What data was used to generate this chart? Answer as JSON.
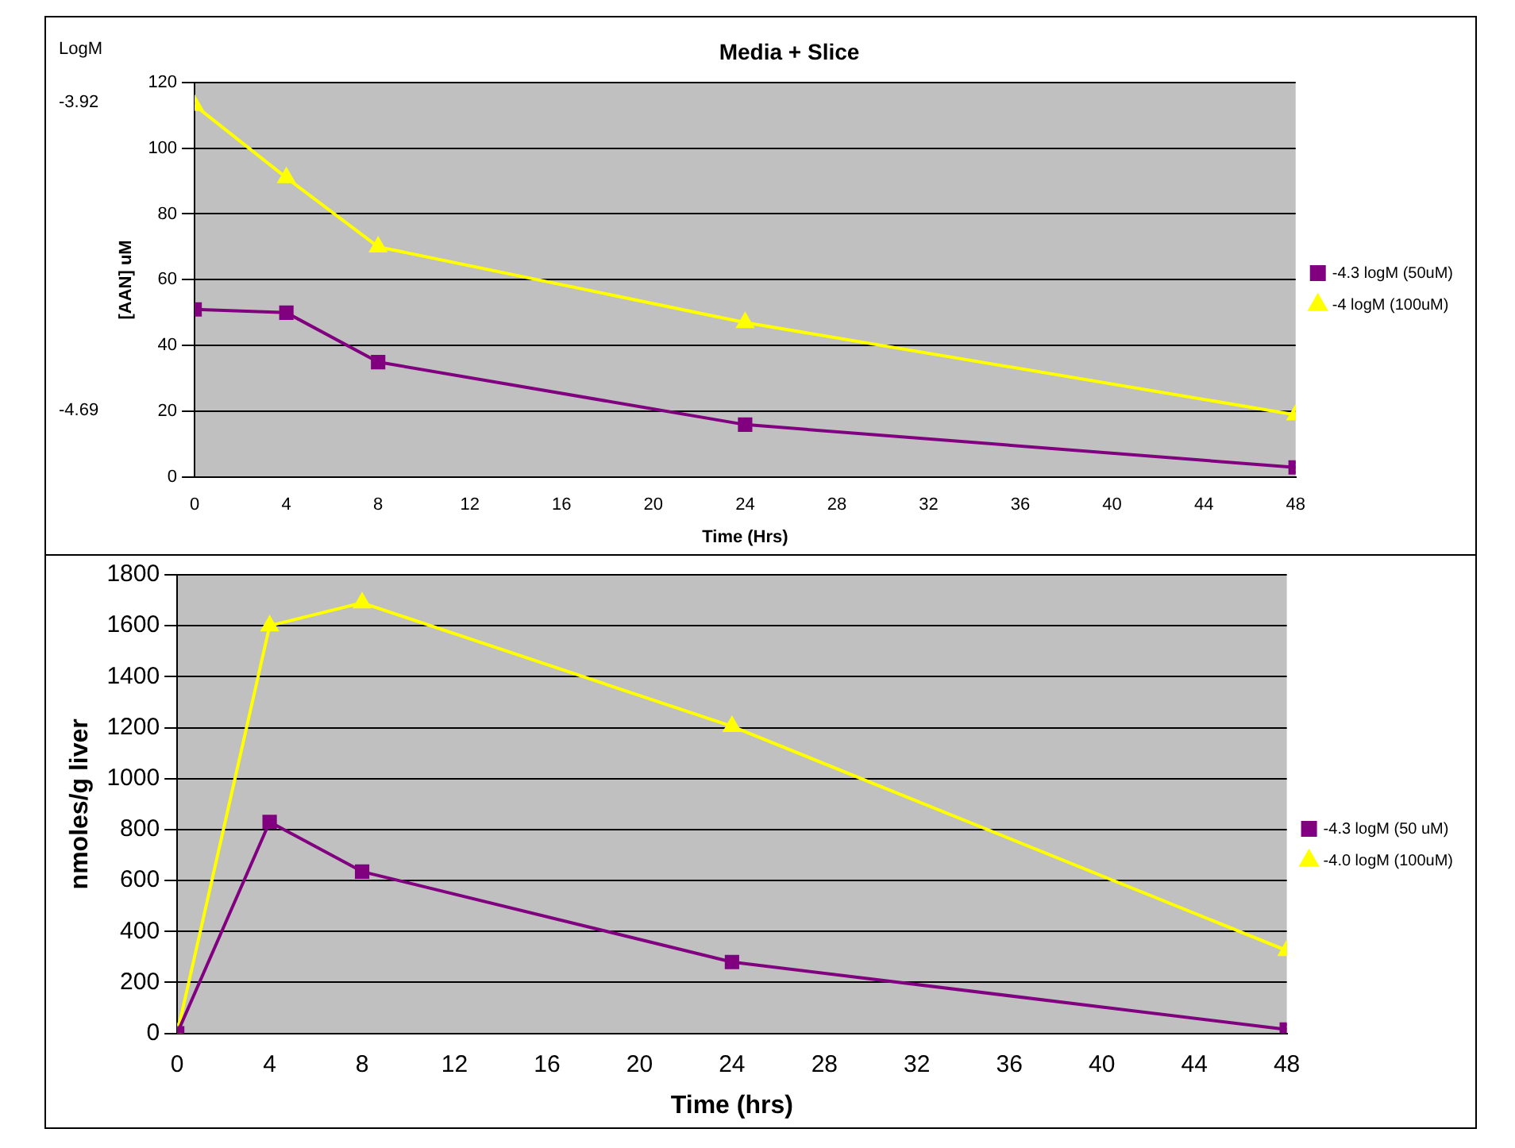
{
  "chart_data": [
    {
      "type": "line",
      "title": "Media + Slice",
      "xlabel": "Time (Hrs)",
      "ylabel": "[AAN] uM",
      "x": [
        0,
        4,
        8,
        24,
        48
      ],
      "series": [
        {
          "name": "-4.3 logM (50uM)",
          "color": "#800080",
          "marker": "square",
          "values": [
            51,
            50,
            35,
            16,
            3
          ]
        },
        {
          "name": "-4 logM (100uM)",
          "color": "#ffff00",
          "marker": "triangle",
          "values": [
            113,
            91,
            70,
            47,
            19
          ]
        }
      ],
      "xlim": [
        0,
        48
      ],
      "xticks": [
        0,
        4,
        8,
        12,
        16,
        20,
        24,
        28,
        32,
        36,
        40,
        44,
        48
      ],
      "ylim": [
        0,
        120
      ],
      "yticks": [
        0,
        20,
        40,
        60,
        80,
        100,
        120
      ],
      "grid": "y",
      "legend": "right",
      "line_style": "solid",
      "annotations": [
        "LogM",
        "-3.92",
        "-4.69"
      ]
    },
    {
      "type": "line",
      "xlabel": "Time (hrs)",
      "ylabel": "nmoles/g liver",
      "x": [
        0,
        4,
        8,
        24,
        48
      ],
      "series": [
        {
          "name": "-4.3 logM (50 uM)",
          "color": "#800080",
          "marker": "square",
          "values": [
            0,
            830,
            635,
            280,
            15
          ]
        },
        {
          "name": "-4.0 logM (100uM)",
          "color": "#ffff00",
          "marker": "triangle",
          "values": [
            0,
            1600,
            1690,
            1205,
            325
          ]
        }
      ],
      "xlim": [
        0,
        48
      ],
      "xticks": [
        0,
        4,
        8,
        12,
        16,
        20,
        24,
        28,
        32,
        36,
        40,
        44,
        48
      ],
      "ylim": [
        0,
        1800
      ],
      "yticks": [
        0,
        200,
        400,
        600,
        800,
        1000,
        1200,
        1400,
        1600,
        1800
      ],
      "grid": "y",
      "legend": "right",
      "line_style": "solid"
    }
  ]
}
